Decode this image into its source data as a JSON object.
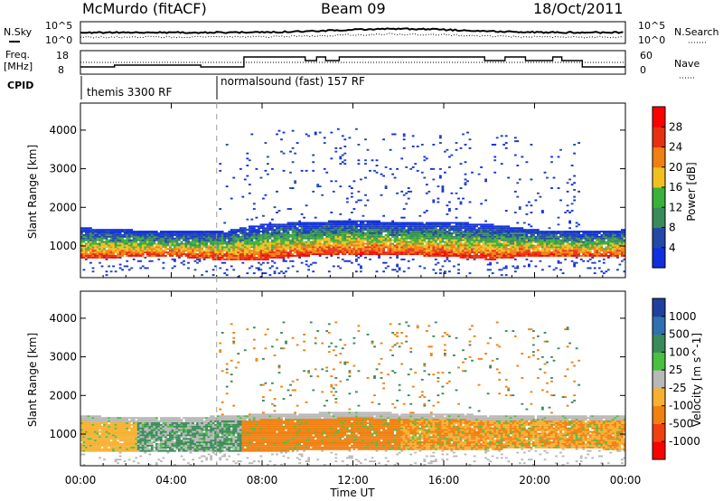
{
  "header": {
    "station": "McMurdo (fitACF)",
    "beam": "Beam 09",
    "date": "18/Oct/2011"
  },
  "noise_panel": {
    "left_label": "N.Sky",
    "right_label": "N.Search",
    "left_ticks": [
      "10^5",
      "10^0"
    ],
    "right_ticks": [
      "10^5",
      "10^0"
    ]
  },
  "freq_panel": {
    "left_label_1": "Freq.",
    "left_label_2": "[MHz]",
    "right_label": "Nave",
    "left_ticks": [
      "18",
      "8"
    ],
    "right_ticks": [
      "60",
      "0"
    ]
  },
  "cpid": {
    "label": "CPID",
    "modes": [
      {
        "name": "themis 3300 RF",
        "start_hour": 0
      },
      {
        "name": "normalsound (fast) 157 RF",
        "start_hour": 6
      }
    ]
  },
  "x_axis": {
    "label": "Time UT",
    "ticks": [
      "00:00",
      "04:00",
      "08:00",
      "12:00",
      "16:00",
      "20:00",
      "00:00"
    ],
    "range_hours": [
      0,
      24
    ]
  },
  "chart_data": [
    {
      "type": "heatmap",
      "title": "",
      "xlabel": "Time UT",
      "ylabel": "Slant Range [km]",
      "yticks": [
        "1000",
        "2000",
        "3000",
        "4000"
      ],
      "ylim": [
        180,
        4700
      ],
      "colorbar": {
        "label": "Power [dB]",
        "ticks": [
          "4",
          "8",
          "12",
          "16",
          "20",
          "24",
          "28"
        ],
        "range": [
          0,
          32
        ],
        "colors": [
          "#1030e0",
          "#2448a8",
          "#3a8a5a",
          "#38b23a",
          "#f0c020",
          "#f08010",
          "#e83010",
          "#ff0000"
        ]
      },
      "backscatter_band": [
        {
          "t": 0,
          "low_km": 650,
          "high_km": 1450
        },
        {
          "t": 2,
          "low_km": 680,
          "high_km": 1400
        },
        {
          "t": 4,
          "low_km": 700,
          "high_km": 1350
        },
        {
          "t": 6,
          "low_km": 620,
          "high_km": 1350
        },
        {
          "t": 8,
          "low_km": 620,
          "high_km": 1550
        },
        {
          "t": 10,
          "low_km": 720,
          "high_km": 1600
        },
        {
          "t": 12,
          "low_km": 760,
          "high_km": 1650
        },
        {
          "t": 14,
          "low_km": 740,
          "high_km": 1600
        },
        {
          "t": 16,
          "low_km": 700,
          "high_km": 1600
        },
        {
          "t": 18,
          "low_km": 620,
          "high_km": 1550
        },
        {
          "t": 20,
          "low_km": 720,
          "high_km": 1400
        },
        {
          "t": 22,
          "low_km": 680,
          "high_km": 1350
        },
        {
          "t": 24,
          "low_km": 700,
          "high_km": 1400
        }
      ]
    },
    {
      "type": "heatmap",
      "title": "",
      "xlabel": "Time UT",
      "ylabel": "Slant Range [km]",
      "yticks": [
        "1000",
        "2000",
        "3000",
        "4000"
      ],
      "ylim": [
        180,
        4700
      ],
      "colorbar": {
        "label": "Velocity [m s^-1]",
        "ticks": [
          "1000",
          "500",
          "100",
          "25",
          "-25",
          "-100",
          "-500",
          "-1000"
        ],
        "colors": [
          "#2040a0",
          "#3070b0",
          "#3a8a5a",
          "#48c040",
          "#b8b8b8",
          "#f8b030",
          "#f08010",
          "#f04010",
          "#ff0000"
        ]
      },
      "backscatter_band": [
        {
          "t": 0,
          "low_km": 500,
          "high_km": 1450
        },
        {
          "t": 4,
          "low_km": 540,
          "high_km": 1400
        },
        {
          "t": 8,
          "low_km": 520,
          "high_km": 1500
        },
        {
          "t": 12,
          "low_km": 580,
          "high_km": 1550
        },
        {
          "t": 16,
          "low_km": 560,
          "high_km": 1500
        },
        {
          "t": 20,
          "low_km": 600,
          "high_km": 1450
        },
        {
          "t": 24,
          "low_km": 580,
          "high_km": 1450
        }
      ]
    }
  ]
}
